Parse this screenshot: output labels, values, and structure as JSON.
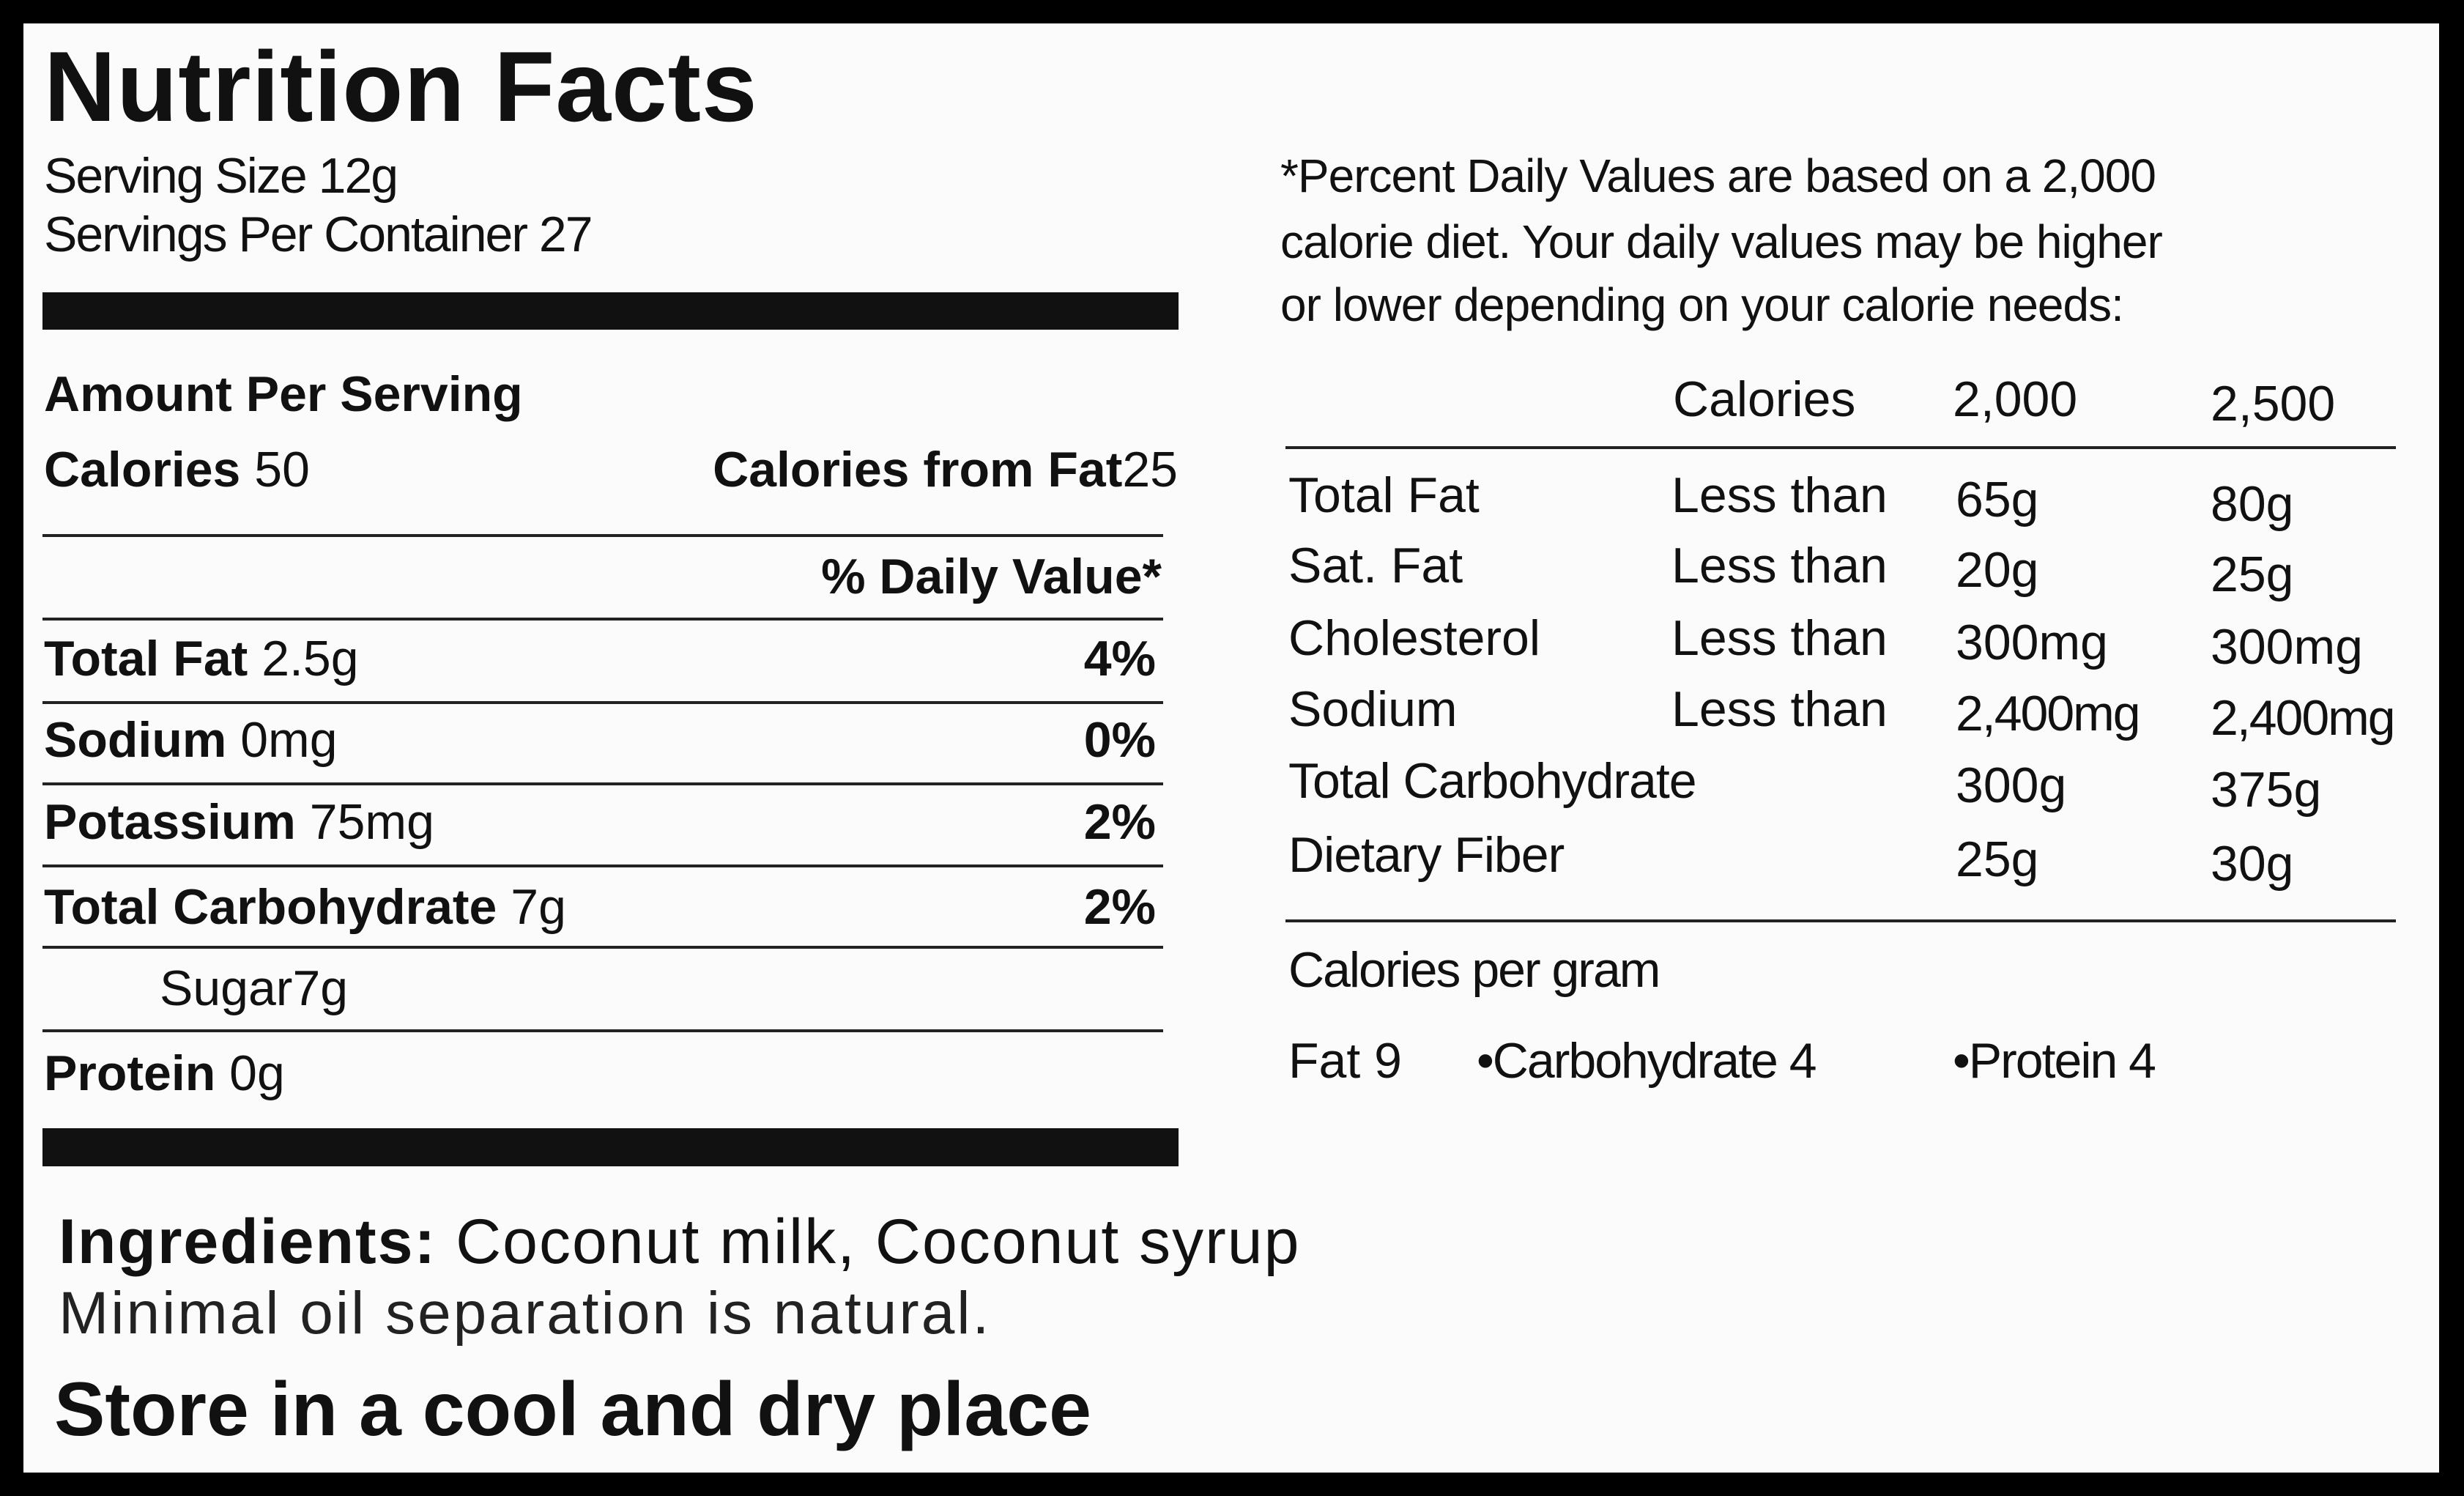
{
  "title": "Nutrition Facts",
  "serving_size": "Serving Size 12g",
  "servings_per_container": "Servings Per Container 27",
  "amount_per_serving": "Amount Per Serving",
  "calories": {
    "label": "Calories",
    "value": "50"
  },
  "calories_from_fat": {
    "label": "Calories from Fat",
    "value": "25"
  },
  "daily_value_header": "% Daily Value*",
  "nutrients": [
    {
      "name": "Total Fat",
      "amount": "2.5g",
      "dv": "4%"
    },
    {
      "name": "Sodium",
      "amount": "0mg",
      "dv": "0%"
    },
    {
      "name": "Potassium",
      "amount": "75mg",
      "dv": "2%"
    },
    {
      "name": "Total Carbohydrate",
      "amount": "7g",
      "dv": "2%"
    },
    {
      "name": "Sugar",
      "amount": "7g",
      "dv": ""
    },
    {
      "name": "Protein",
      "amount": "0g",
      "dv": ""
    }
  ],
  "footnote": [
    "*Percent Daily Values are based on a 2,000",
    "calorie diet. Your daily values may be higher",
    "or lower depending on your calorie needs:"
  ],
  "dv_table": {
    "headers": [
      "Calories",
      "2,000",
      "2,500"
    ],
    "rows": [
      [
        "Total Fat",
        "Less than",
        "65g",
        "80g"
      ],
      [
        "Sat. Fat",
        "Less than",
        "20g",
        "25g"
      ],
      [
        "Cholesterol",
        "Less than",
        "300mg",
        "300mg"
      ],
      [
        "Sodium",
        "Less than",
        "2,400mg",
        "2,400mg"
      ],
      [
        "Total Carbohydrate",
        "",
        "300g",
        "375g"
      ],
      [
        "Dietary Fiber",
        "",
        "25g",
        "30g"
      ]
    ]
  },
  "calories_per_gram": {
    "label": "Calories per gram",
    "items": [
      "Fat 9",
      "•Carbohydrate 4",
      "•Protein 4"
    ]
  },
  "ingredients": {
    "label": "Ingredients:",
    "text": "Coconut milk, Coconut syrup"
  },
  "note": "Minimal oil separation is natural.",
  "storage": "Store in a cool and dry place"
}
